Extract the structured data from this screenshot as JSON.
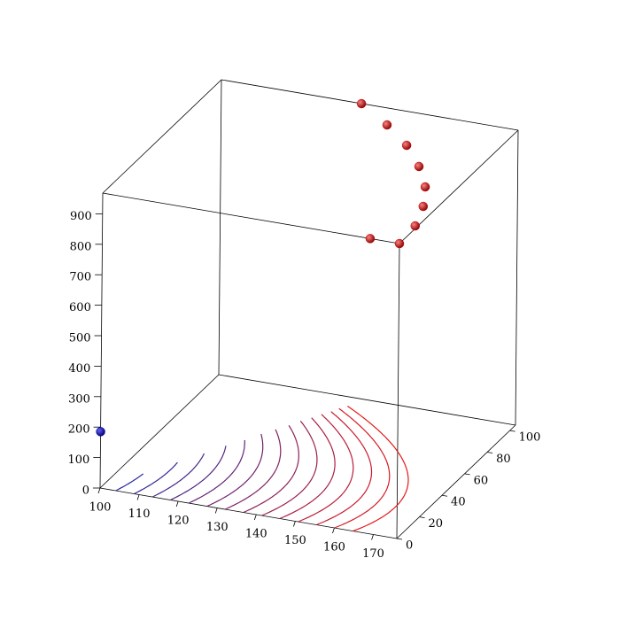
{
  "chart_data": {
    "type": "scatter3d",
    "xlim": [
      100,
      176
    ],
    "ylim": [
      0,
      105
    ],
    "zlim": [
      0,
      968
    ],
    "xticks": [
      100,
      110,
      120,
      130,
      140,
      150,
      160,
      170
    ],
    "yticks": [
      0,
      20,
      40,
      60,
      80,
      100
    ],
    "zticks": [
      0,
      100,
      200,
      300,
      400,
      500,
      600,
      700,
      800,
      900
    ],
    "series": [
      {
        "color": "#d40000",
        "x": [
          135.9,
          146.3,
          155.2,
          162.7,
          168.7,
          172.7,
          175.4,
          176,
          168.5
        ],
        "y": [
          104.9,
          91.6,
          78.2,
          63.2,
          48.0,
          32.4,
          16.0,
          0,
          0
        ],
        "z": [
          968,
          968,
          968,
          968,
          968,
          968,
          968,
          968,
          968
        ]
      },
      {
        "color": "#0000c0",
        "x": [
          100
        ],
        "y": [
          0
        ],
        "z": [
          185
        ]
      }
    ],
    "contours": {
      "levels": [
        104,
        108.7,
        113.4,
        118,
        122.7,
        127.4,
        132,
        136.7,
        141.4,
        146,
        150.7,
        155.4,
        160,
        164.8
      ],
      "colors": [
        "#2828a0",
        "#e41a1a"
      ]
    }
  }
}
